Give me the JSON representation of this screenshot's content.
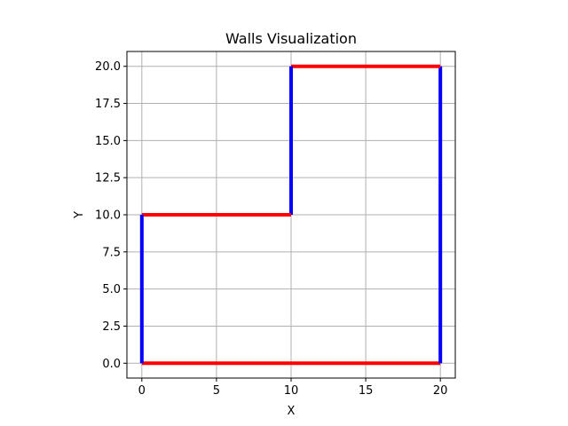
{
  "chart_data": {
    "type": "line",
    "title": "Walls Visualization",
    "xlabel": "X",
    "ylabel": "Y",
    "xlim": [
      -1,
      21
    ],
    "ylim": [
      -1,
      21
    ],
    "xticks": [
      0,
      5,
      10,
      15,
      20
    ],
    "xtick_labels": [
      "0",
      "5",
      "10",
      "15",
      "20"
    ],
    "yticks": [
      0,
      2.5,
      5,
      7.5,
      10,
      12.5,
      15,
      17.5,
      20
    ],
    "ytick_labels": [
      "0.0",
      "2.5",
      "5.0",
      "7.5",
      "10.0",
      "12.5",
      "15.0",
      "17.5",
      "20.0"
    ],
    "grid": true,
    "colors": {
      "horizontal_wall": "#ff0000",
      "vertical_wall": "#0000ff",
      "grid": "#b0b0b0",
      "axis": "#000000"
    },
    "segments": [
      {
        "from": [
          0,
          0
        ],
        "to": [
          20,
          0
        ],
        "orientation": "horizontal"
      },
      {
        "from": [
          20,
          0
        ],
        "to": [
          20,
          20
        ],
        "orientation": "vertical"
      },
      {
        "from": [
          20,
          20
        ],
        "to": [
          10,
          20
        ],
        "orientation": "horizontal"
      },
      {
        "from": [
          10,
          20
        ],
        "to": [
          10,
          10
        ],
        "orientation": "vertical"
      },
      {
        "from": [
          10,
          10
        ],
        "to": [
          0,
          10
        ],
        "orientation": "horizontal"
      },
      {
        "from": [
          0,
          10
        ],
        "to": [
          0,
          0
        ],
        "orientation": "vertical"
      }
    ]
  }
}
